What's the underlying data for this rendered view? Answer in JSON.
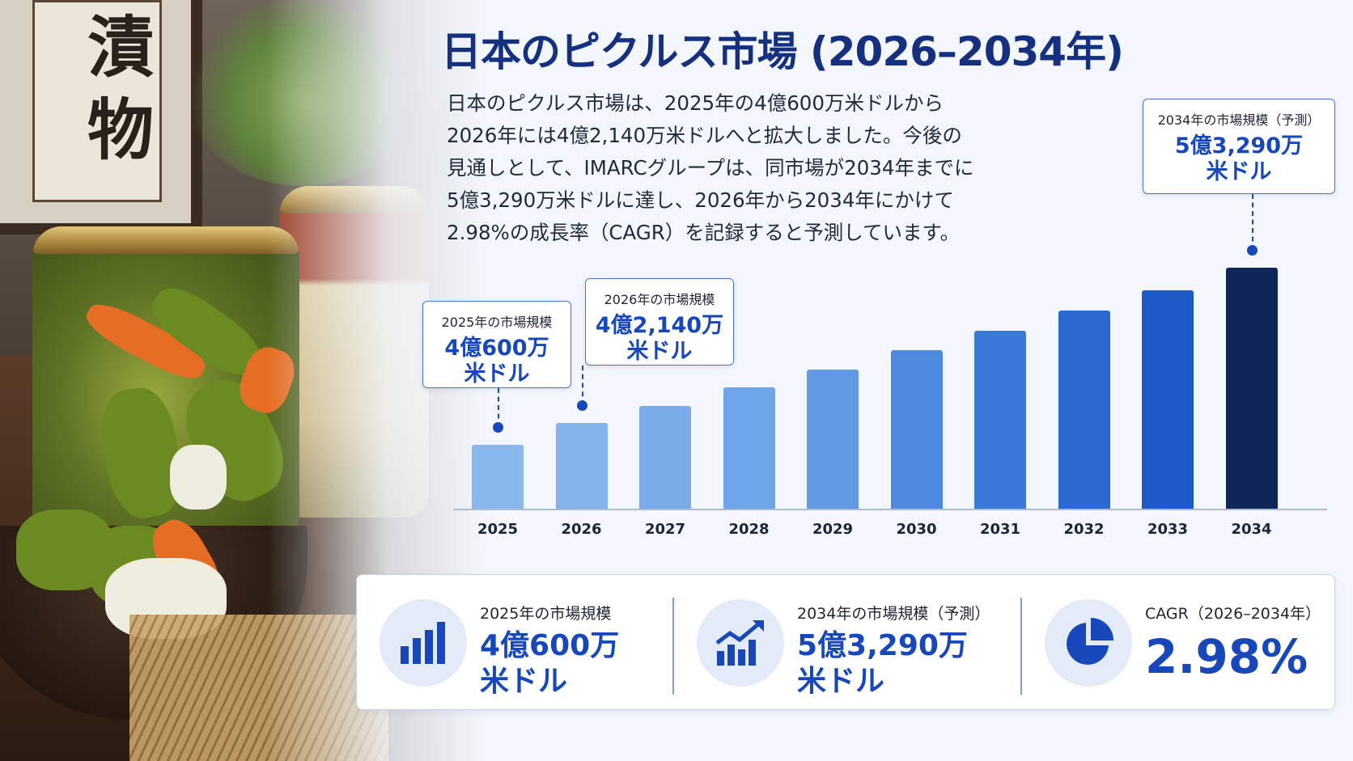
{
  "title": "日本のピクルス市場 (2026–2034年)",
  "photo": {
    "sign_text": [
      "漬",
      "物"
    ]
  },
  "description": [
    "日本のピクルス市場は、2025年の4億600万米ドルから",
    "2026年には4億2,140万米ドルへと拡大しました。今後の",
    "見通しとして、IMARCグループは、同市場が2034年までに",
    "5億3,290万米ドルに達し、2026年から2034年にかけて",
    "2.98%の成長率（CAGR）を記録すると予測しています。"
  ],
  "chart_data": {
    "type": "bar",
    "categories": [
      "2025",
      "2026",
      "2027",
      "2028",
      "2029",
      "2030",
      "2031",
      "2032",
      "2033",
      "2034"
    ],
    "values": [
      406.0,
      421.4,
      434,
      447,
      460,
      474,
      488,
      502,
      517,
      532.9
    ],
    "unit": "百万米ドル",
    "ylim": [
      360,
      540
    ],
    "bar_colors": [
      "#8ab8ec",
      "#84b2ea",
      "#7aacea",
      "#6ea4e8",
      "#6199e4",
      "#4d89df",
      "#3b79d8",
      "#2b68cf",
      "#1e5ac6",
      "#0f2657"
    ],
    "callouts": [
      {
        "category": "2025",
        "label": "2025年の市場規模",
        "value": "4億600万",
        "unit": "米ドル"
      },
      {
        "category": "2026",
        "label": "2026年の市場規模",
        "value": "4億2,140万",
        "unit": "米ドル"
      },
      {
        "category": "2034",
        "label": "2034年の市場規模（予測）",
        "value": "5億3,290万",
        "unit": "米ドル"
      }
    ]
  },
  "stats": [
    {
      "icon": "bar-chart-icon",
      "label": "2025年の市場規模",
      "value": "4億600万",
      "unit": "米ドル"
    },
    {
      "icon": "trend-up-chart-icon",
      "label": "2034年の市場規模（予測）",
      "value": "5億3,290万",
      "unit": "米ドル"
    },
    {
      "icon": "pie-chart-icon",
      "label": "CAGR（2026–2034年）",
      "value": "2.98%"
    }
  ],
  "colors": {
    "accent": "#1747b8",
    "title": "#14307e",
    "darkest_bar": "#0f2657"
  }
}
